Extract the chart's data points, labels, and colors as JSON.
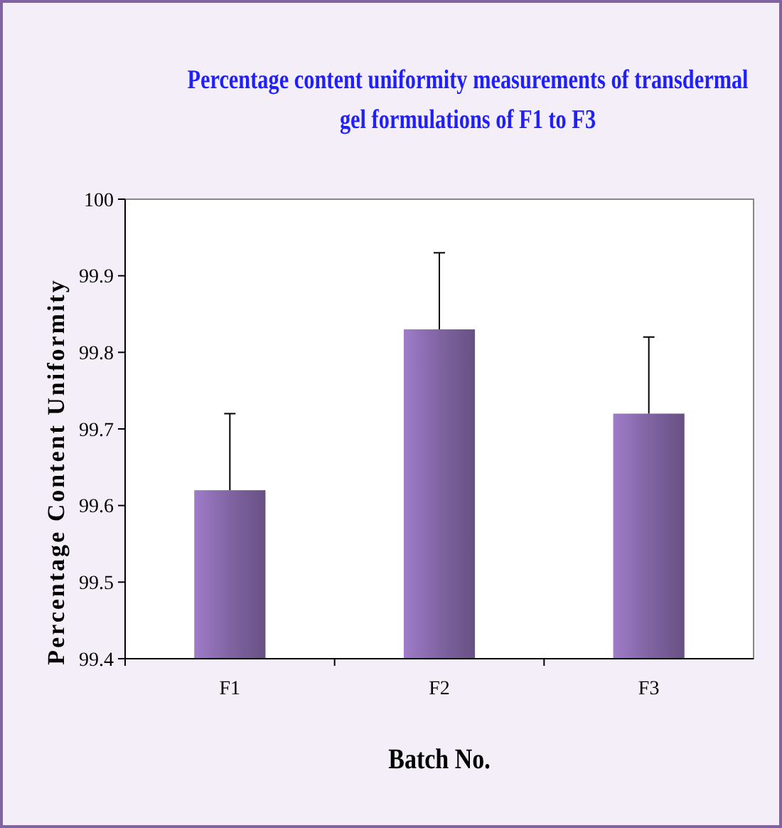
{
  "chart_data": {
    "type": "bar",
    "title": "Percentage content uniformity measurements of transdermal gel formulations of F1 to F3",
    "xlabel": "Batch No.",
    "ylabel": "Percentage Content Uniformity",
    "categories": [
      "F1",
      "F2",
      "F3"
    ],
    "series": [
      {
        "color": "#8064a2",
        "values": [
          99.62,
          99.83,
          99.72
        ],
        "errors": [
          [
            99.62,
            99.72
          ],
          [
            99.83,
            99.93
          ],
          [
            99.72,
            99.82
          ]
        ]
      }
    ],
    "ylim": [
      99.4,
      100
    ],
    "yticks": [
      99.4,
      99.5,
      99.6,
      99.7,
      99.8,
      99.9,
      100
    ],
    "grid": false
  }
}
